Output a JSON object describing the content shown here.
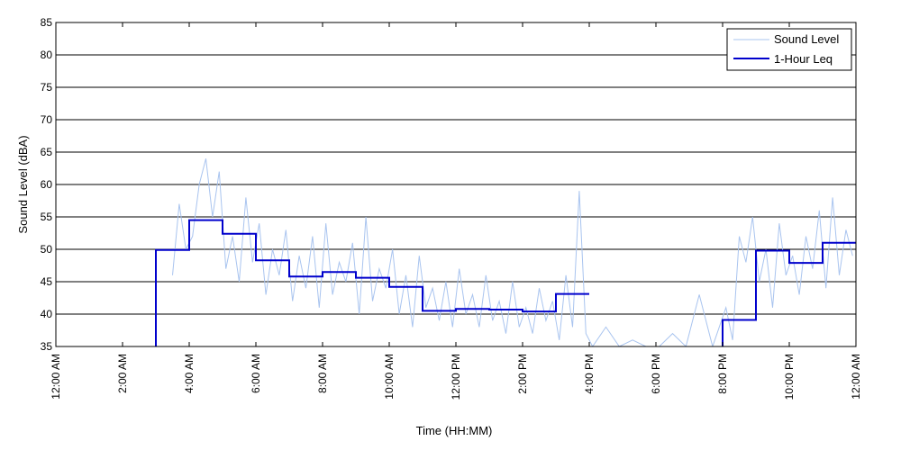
{
  "chart_data": {
    "type": "line",
    "xlabel": "Time (HH:MM)",
    "ylabel": "Sound Level (dBA)",
    "xlim_hours": [
      0,
      24
    ],
    "ylim": [
      35,
      85
    ],
    "y_ticks": [
      35,
      40,
      45,
      50,
      55,
      60,
      65,
      70,
      75,
      80,
      85
    ],
    "x_ticks": [
      {
        "hour": 0,
        "label": "12:00 AM"
      },
      {
        "hour": 2,
        "label": "2:00 AM"
      },
      {
        "hour": 4,
        "label": "4:00 AM"
      },
      {
        "hour": 6,
        "label": "6:00 AM"
      },
      {
        "hour": 8,
        "label": "8:00 AM"
      },
      {
        "hour": 10,
        "label": "10:00 AM"
      },
      {
        "hour": 12,
        "label": "12:00 PM"
      },
      {
        "hour": 14,
        "label": "2:00 PM"
      },
      {
        "hour": 16,
        "label": "4:00 PM"
      },
      {
        "hour": 18,
        "label": "6:00 PM"
      },
      {
        "hour": 20,
        "label": "8:00 PM"
      },
      {
        "hour": 22,
        "label": "10:00 PM"
      },
      {
        "hour": 24,
        "label": "12:00 AM"
      }
    ],
    "grid": "horizontal",
    "legend_position": "top-right",
    "series": [
      {
        "name": "Sound Level",
        "color": "#a9c4ef",
        "x_hours": [
          3.5,
          3.7,
          3.9,
          4.1,
          4.3,
          4.5,
          4.7,
          4.9,
          5.1,
          5.3,
          5.5,
          5.7,
          5.9,
          6.1,
          6.3,
          6.5,
          6.7,
          6.9,
          7.1,
          7.3,
          7.5,
          7.7,
          7.9,
          8.1,
          8.3,
          8.5,
          8.7,
          8.9,
          9.1,
          9.3,
          9.5,
          9.7,
          9.9,
          10.1,
          10.3,
          10.5,
          10.7,
          10.9,
          11.1,
          11.3,
          11.5,
          11.7,
          11.9,
          12.1,
          12.3,
          12.5,
          12.7,
          12.9,
          13.1,
          13.3,
          13.5,
          13.7,
          13.9,
          14.1,
          14.3,
          14.5,
          14.7,
          14.9,
          15.1,
          15.3,
          15.5,
          15.7,
          15.9,
          16.1,
          16.5,
          16.9,
          17.3,
          17.7,
          18.1,
          18.5,
          18.9,
          19.3,
          19.7,
          20.1,
          20.3,
          20.5,
          20.7,
          20.9,
          21.1,
          21.3,
          21.5,
          21.7,
          21.9,
          22.1,
          22.3,
          22.5,
          22.7,
          22.9,
          23.1,
          23.3,
          23.5,
          23.7,
          23.9
        ],
        "values": [
          46,
          57,
          50,
          52,
          60,
          64,
          55,
          62,
          47,
          52,
          45,
          58,
          48,
          54,
          43,
          50,
          46,
          53,
          42,
          49,
          44,
          52,
          41,
          54,
          43,
          48,
          45,
          51,
          40,
          55,
          42,
          47,
          44,
          50,
          40,
          46,
          38,
          49,
          41,
          44,
          39,
          45,
          38,
          47,
          40,
          43,
          38,
          46,
          39,
          42,
          37,
          45,
          38,
          41,
          37,
          44,
          39,
          42,
          36,
          46,
          38,
          59,
          37,
          35,
          38,
          35,
          36,
          35,
          35,
          37,
          35,
          43,
          35,
          41,
          36,
          52,
          48,
          55,
          45,
          50,
          41,
          54,
          46,
          49,
          43,
          52,
          47,
          56,
          44,
          58,
          46,
          53,
          49
        ]
      },
      {
        "name": "1-Hour Leq",
        "color": "#0000cc",
        "steps": [
          {
            "start": 3,
            "end": 4,
            "value": 49.9
          },
          {
            "start": 4,
            "end": 5,
            "value": 54.5
          },
          {
            "start": 5,
            "end": 6,
            "value": 52.4
          },
          {
            "start": 6,
            "end": 7,
            "value": 48.3
          },
          {
            "start": 7,
            "end": 8,
            "value": 45.8
          },
          {
            "start": 8,
            "end": 9,
            "value": 46.5
          },
          {
            "start": 9,
            "end": 10,
            "value": 45.6
          },
          {
            "start": 10,
            "end": 11,
            "value": 44.2
          },
          {
            "start": 11,
            "end": 12,
            "value": 40.5
          },
          {
            "start": 12,
            "end": 13,
            "value": 40.8
          },
          {
            "start": 13,
            "end": 14,
            "value": 40.7
          },
          {
            "start": 14,
            "end": 15,
            "value": 40.4
          },
          {
            "start": 15,
            "end": 16,
            "value": 43.1
          },
          {
            "start": 20,
            "end": 21,
            "value": 39.1
          },
          {
            "start": 21,
            "end": 22,
            "value": 49.8
          },
          {
            "start": 22,
            "end": 23,
            "value": 47.9
          },
          {
            "start": 23,
            "end": 24,
            "value": 51.0
          }
        ]
      }
    ]
  }
}
